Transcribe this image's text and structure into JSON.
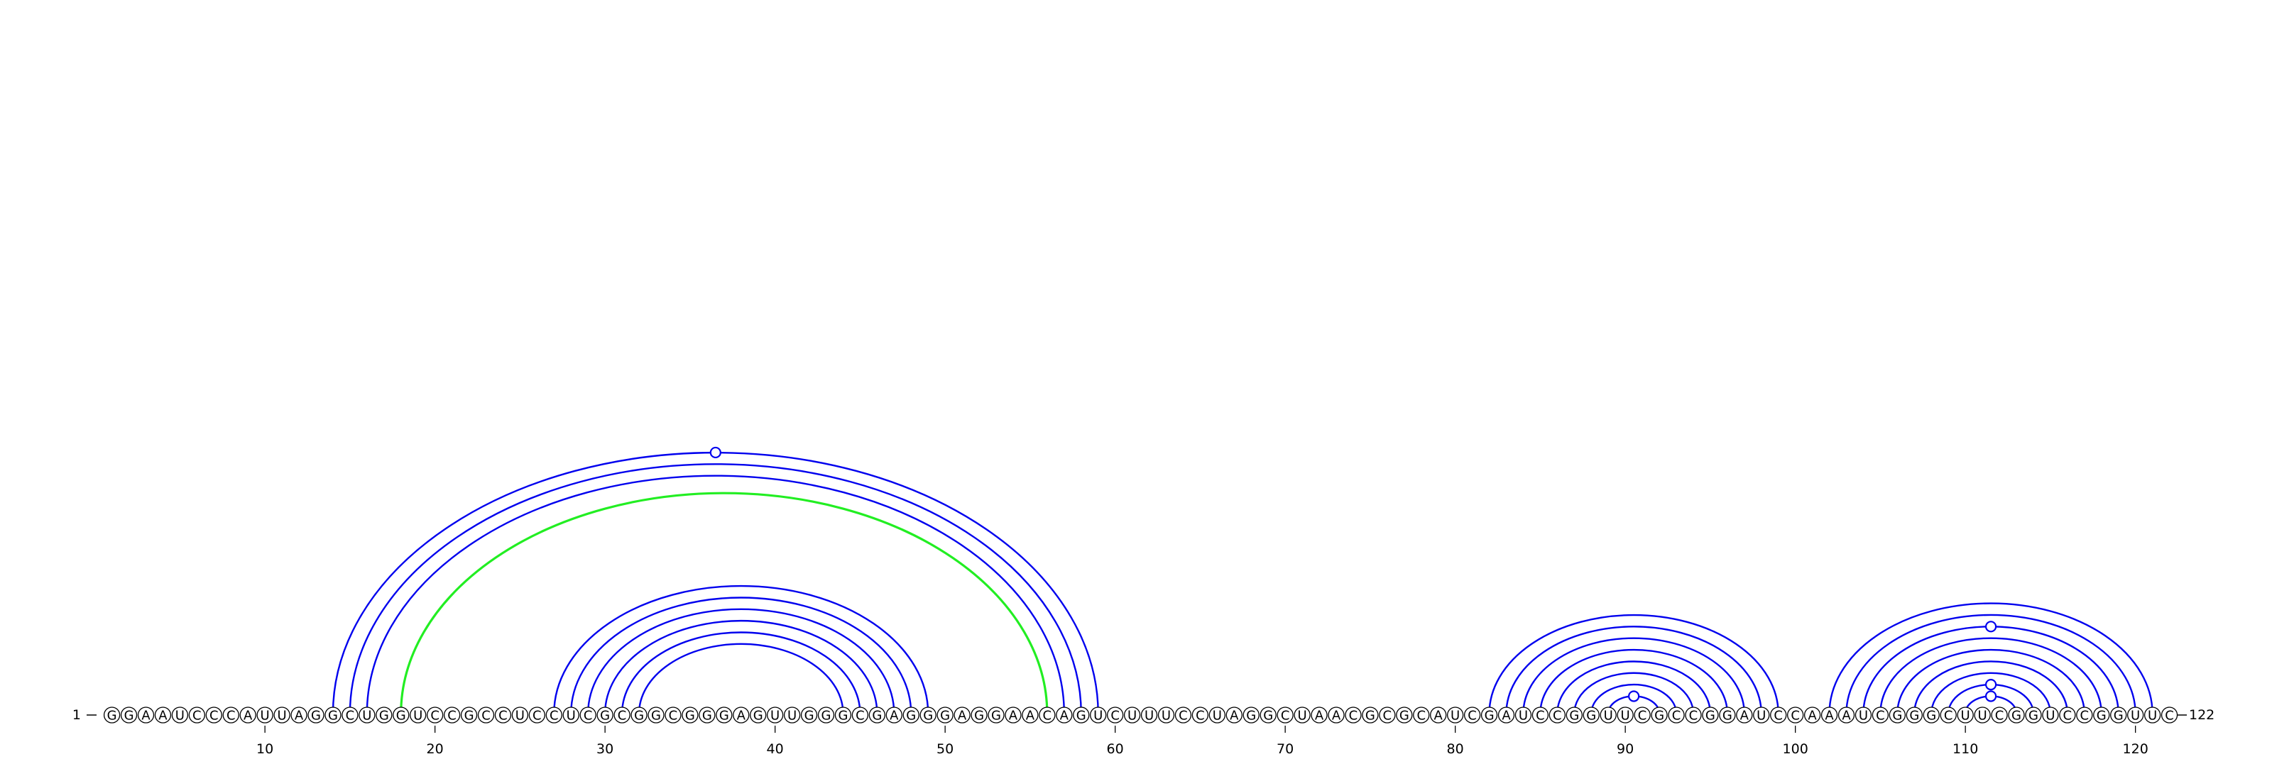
{
  "sequence": "GGAAUCCCAUUAGGCUGGUCCGCCUCCUCGCGGCGGGAGUUGGGCGAGGGAGGAACAGUCUUUCCUAGGCUAACGCGCAUCGAUCCGGUUCGCCGGAUCCAAAUCGGGCUUCGGUCCGGUUC",
  "start_label": "1",
  "end_label": "122",
  "tick_labels": [
    "10",
    "20",
    "30",
    "40",
    "50",
    "60",
    "70",
    "80",
    "90",
    "100",
    "110",
    "120"
  ],
  "tick_positions": [
    10,
    20,
    30,
    40,
    50,
    60,
    70,
    80,
    90,
    100,
    110,
    120
  ],
  "colors": {
    "arc_primary": "#0000ee",
    "arc_highlight": "#22ee22",
    "nucleotide_fill": "#ffffff",
    "nucleotide_stroke": "#000000",
    "text": "#000000"
  },
  "arcs": [
    {
      "i": 14,
      "j": 59,
      "color": "primary",
      "marker": true
    },
    {
      "i": 15,
      "j": 58,
      "color": "primary",
      "marker": false
    },
    {
      "i": 16,
      "j": 57,
      "color": "primary",
      "marker": false
    },
    {
      "i": 18,
      "j": 56,
      "color": "highlight",
      "marker": false
    },
    {
      "i": 27,
      "j": 49,
      "color": "primary",
      "marker": false
    },
    {
      "i": 28,
      "j": 48,
      "color": "primary",
      "marker": false
    },
    {
      "i": 29,
      "j": 47,
      "color": "primary",
      "marker": false
    },
    {
      "i": 30,
      "j": 46,
      "color": "primary",
      "marker": false
    },
    {
      "i": 31,
      "j": 45,
      "color": "primary",
      "marker": false
    },
    {
      "i": 32,
      "j": 44,
      "color": "primary",
      "marker": false
    },
    {
      "i": 82,
      "j": 99,
      "color": "primary",
      "marker": false
    },
    {
      "i": 83,
      "j": 98,
      "color": "primary",
      "marker": false
    },
    {
      "i": 84,
      "j": 97,
      "color": "primary",
      "marker": false
    },
    {
      "i": 85,
      "j": 96,
      "color": "primary",
      "marker": false
    },
    {
      "i": 86,
      "j": 95,
      "color": "primary",
      "marker": false
    },
    {
      "i": 87,
      "j": 94,
      "color": "primary",
      "marker": false
    },
    {
      "i": 88,
      "j": 93,
      "color": "primary",
      "marker": false
    },
    {
      "i": 89,
      "j": 92,
      "color": "primary",
      "marker": true
    },
    {
      "i": 102,
      "j": 121,
      "color": "primary",
      "marker": false
    },
    {
      "i": 103,
      "j": 120,
      "color": "primary",
      "marker": false
    },
    {
      "i": 104,
      "j": 119,
      "color": "primary",
      "marker": true
    },
    {
      "i": 105,
      "j": 118,
      "color": "primary",
      "marker": false
    },
    {
      "i": 106,
      "j": 117,
      "color": "primary",
      "marker": false
    },
    {
      "i": 107,
      "j": 116,
      "color": "primary",
      "marker": false
    },
    {
      "i": 108,
      "j": 115,
      "color": "primary",
      "marker": false
    },
    {
      "i": 109,
      "j": 114,
      "color": "primary",
      "marker": true
    },
    {
      "i": 110,
      "j": 113,
      "color": "primary",
      "marker": true
    }
  ]
}
